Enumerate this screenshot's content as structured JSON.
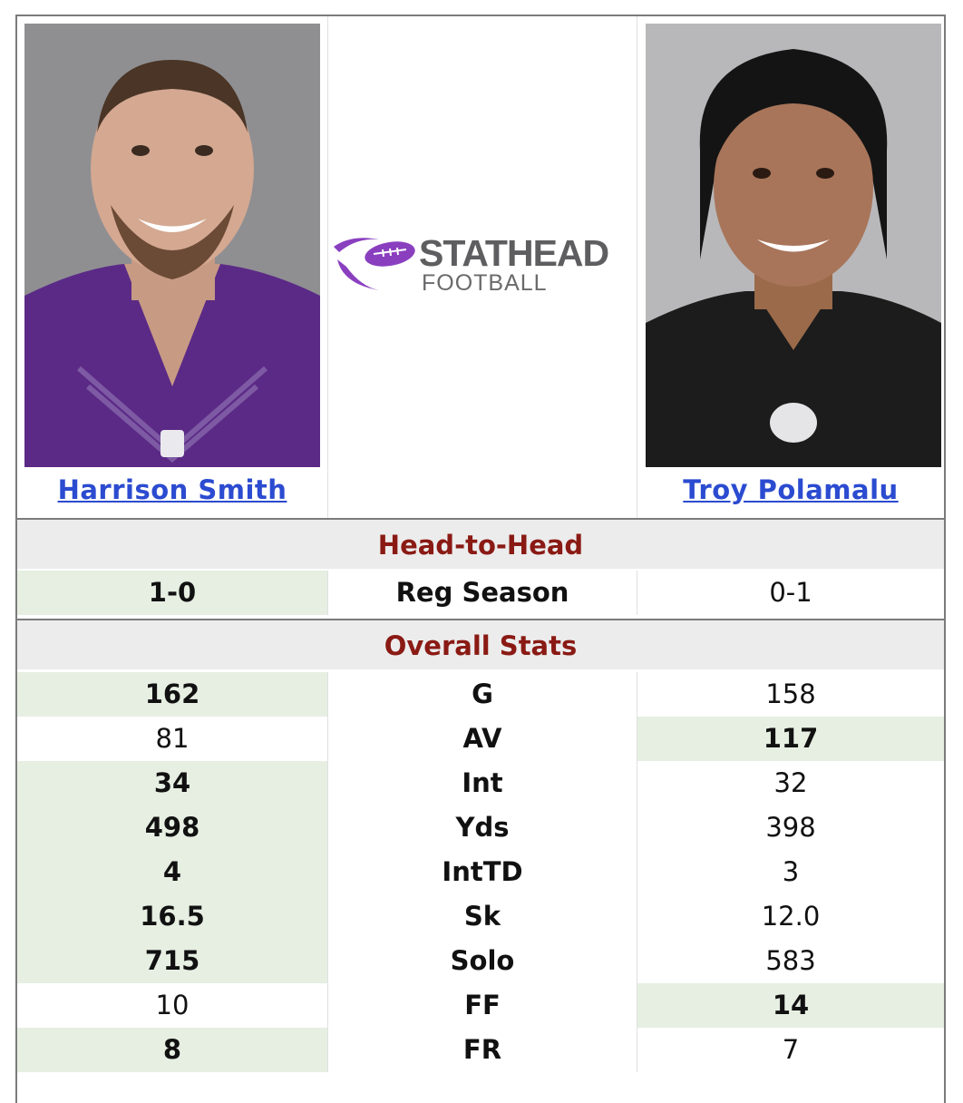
{
  "players": {
    "left": {
      "name": "Harrison Smith",
      "jersey_color": "#5b2a86"
    },
    "right": {
      "name": "Troy Polamalu",
      "jersey_color": "#1c1c1c"
    }
  },
  "logo": {
    "line1": "STATHEAD",
    "line2": "FOOTBALL",
    "icon": "football-swoosh-icon",
    "accent": "#8a3fbf"
  },
  "sections": {
    "head_to_head": "Head-to-Head",
    "overall": "Overall Stats"
  },
  "head_to_head_row": {
    "left": "1-0",
    "label": "Reg Season",
    "right": "0-1",
    "winner": "left"
  },
  "stats": [
    {
      "left": "162",
      "label": "G",
      "right": "158",
      "winner": "left"
    },
    {
      "left": "81",
      "label": "AV",
      "right": "117",
      "winner": "right"
    },
    {
      "left": "34",
      "label": "Int",
      "right": "32",
      "winner": "left"
    },
    {
      "left": "498",
      "label": "Yds",
      "right": "398",
      "winner": "left"
    },
    {
      "left": "4",
      "label": "IntTD",
      "right": "3",
      "winner": "left"
    },
    {
      "left": "16.5",
      "label": "Sk",
      "right": "12.0",
      "winner": "left"
    },
    {
      "left": "715",
      "label": "Solo",
      "right": "583",
      "winner": "left"
    },
    {
      "left": "10",
      "label": "FF",
      "right": "14",
      "winner": "right"
    },
    {
      "left": "8",
      "label": "FR",
      "right": "7",
      "winner": "left"
    }
  ],
  "colors": {
    "section_title": "#8a1a14",
    "link": "#2b4bd0",
    "win_bg": "#e6efe2"
  }
}
